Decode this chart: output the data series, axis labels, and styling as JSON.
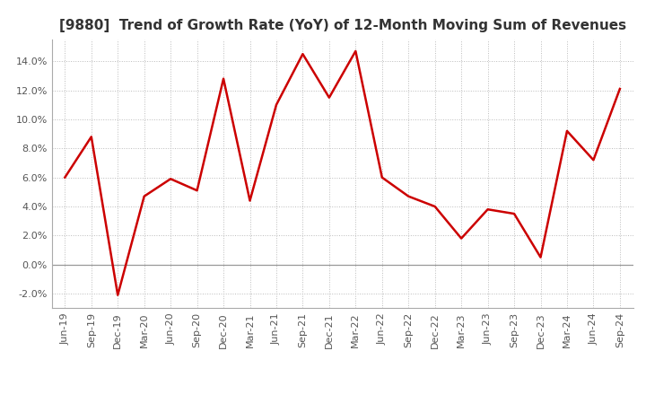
{
  "title": "[9880]  Trend of Growth Rate (YoY) of 12-Month Moving Sum of Revenues",
  "x_labels": [
    "Jun-19",
    "Sep-19",
    "Dec-19",
    "Mar-20",
    "Jun-20",
    "Sep-20",
    "Dec-20",
    "Mar-21",
    "Jun-21",
    "Sep-21",
    "Dec-21",
    "Mar-22",
    "Jun-22",
    "Sep-22",
    "Dec-22",
    "Mar-23",
    "Jun-23",
    "Sep-23",
    "Dec-23",
    "Mar-24",
    "Jun-24",
    "Sep-24"
  ],
  "y_values": [
    0.06,
    0.088,
    -0.021,
    0.047,
    0.059,
    0.051,
    0.128,
    0.044,
    0.11,
    0.145,
    0.115,
    0.147,
    0.06,
    0.047,
    0.04,
    0.018,
    0.038,
    0.035,
    0.005,
    0.092,
    0.072,
    0.121
  ],
  "line_color": "#cc0000",
  "line_width": 1.8,
  "background_color": "#ffffff",
  "plot_bg_color": "#ffffff",
  "grid_color": "#bbbbbb",
  "ylim": [
    -0.03,
    0.155
  ],
  "yticks": [
    -0.02,
    0.0,
    0.02,
    0.04,
    0.06,
    0.08,
    0.1,
    0.12,
    0.14
  ],
  "title_fontsize": 11,
  "tick_fontsize": 8,
  "title_color": "#333333"
}
